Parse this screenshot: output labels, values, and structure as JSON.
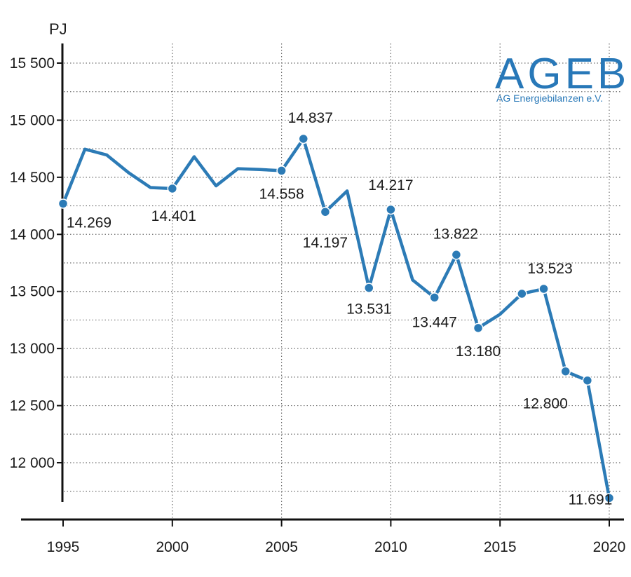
{
  "logo": {
    "name": "AGEB",
    "subtitle": "AG Energiebilanzen e.V."
  },
  "chart_data": {
    "type": "line",
    "ylabel": "PJ",
    "xlabel": "",
    "title": "",
    "x_ticks": [
      "1995",
      "2000",
      "2005",
      "2010",
      "2015",
      "2020"
    ],
    "y_ticks": [
      {
        "value": 12000,
        "label": "12 000"
      },
      {
        "value": 12500,
        "label": "12 500"
      },
      {
        "value": 13000,
        "label": "13 000"
      },
      {
        "value": 13500,
        "label": "13 500"
      },
      {
        "value": 14000,
        "label": "14 000"
      },
      {
        "value": 14500,
        "label": "14 500"
      },
      {
        "value": 15000,
        "label": "15 000"
      },
      {
        "value": 15500,
        "label": "15 500"
      }
    ],
    "xlim": [
      1995,
      2020
    ],
    "ylim": [
      11750,
      15750
    ],
    "grid": "horizontal dotted every 250, vertical dotted at year ticks",
    "series_color": "#2c7bb6",
    "points": [
      {
        "x": 1995,
        "y": 14269,
        "label": "14.269",
        "marker": true
      },
      {
        "x": 1996,
        "y": 14746
      },
      {
        "x": 1997,
        "y": 14695
      },
      {
        "x": 1998,
        "y": 14540
      },
      {
        "x": 1999,
        "y": 14410
      },
      {
        "x": 2000,
        "y": 14401,
        "label": "14.401",
        "marker": true
      },
      {
        "x": 2001,
        "y": 14680
      },
      {
        "x": 2002,
        "y": 14425
      },
      {
        "x": 2003,
        "y": 14575
      },
      {
        "x": 2004,
        "y": 14568
      },
      {
        "x": 2005,
        "y": 14558,
        "label": "14.558",
        "marker": true
      },
      {
        "x": 2006,
        "y": 14837,
        "label": "14.837",
        "marker": true
      },
      {
        "x": 2007,
        "y": 14197,
        "label": "14.197",
        "marker": true
      },
      {
        "x": 2008,
        "y": 14380
      },
      {
        "x": 2009,
        "y": 13531,
        "label": "13.531",
        "marker": true
      },
      {
        "x": 2010,
        "y": 14217,
        "label": "14.217",
        "marker": true
      },
      {
        "x": 2011,
        "y": 13600
      },
      {
        "x": 2012,
        "y": 13447,
        "label": "13.447",
        "marker": true
      },
      {
        "x": 2013,
        "y": 13822,
        "label": "13.822",
        "marker": true
      },
      {
        "x": 2014,
        "y": 13180,
        "label": "13.180",
        "marker": true
      },
      {
        "x": 2015,
        "y": 13300
      },
      {
        "x": 2016,
        "y": 13480,
        "marker": true
      },
      {
        "x": 2017,
        "y": 13523,
        "label": "13.523",
        "marker": true
      },
      {
        "x": 2018,
        "y": 12800,
        "label": "12.800",
        "marker": true
      },
      {
        "x": 2019,
        "y": 12720,
        "marker": true
      },
      {
        "x": 2020,
        "y": 11691,
        "label": "11.691",
        "marker": true
      }
    ]
  }
}
